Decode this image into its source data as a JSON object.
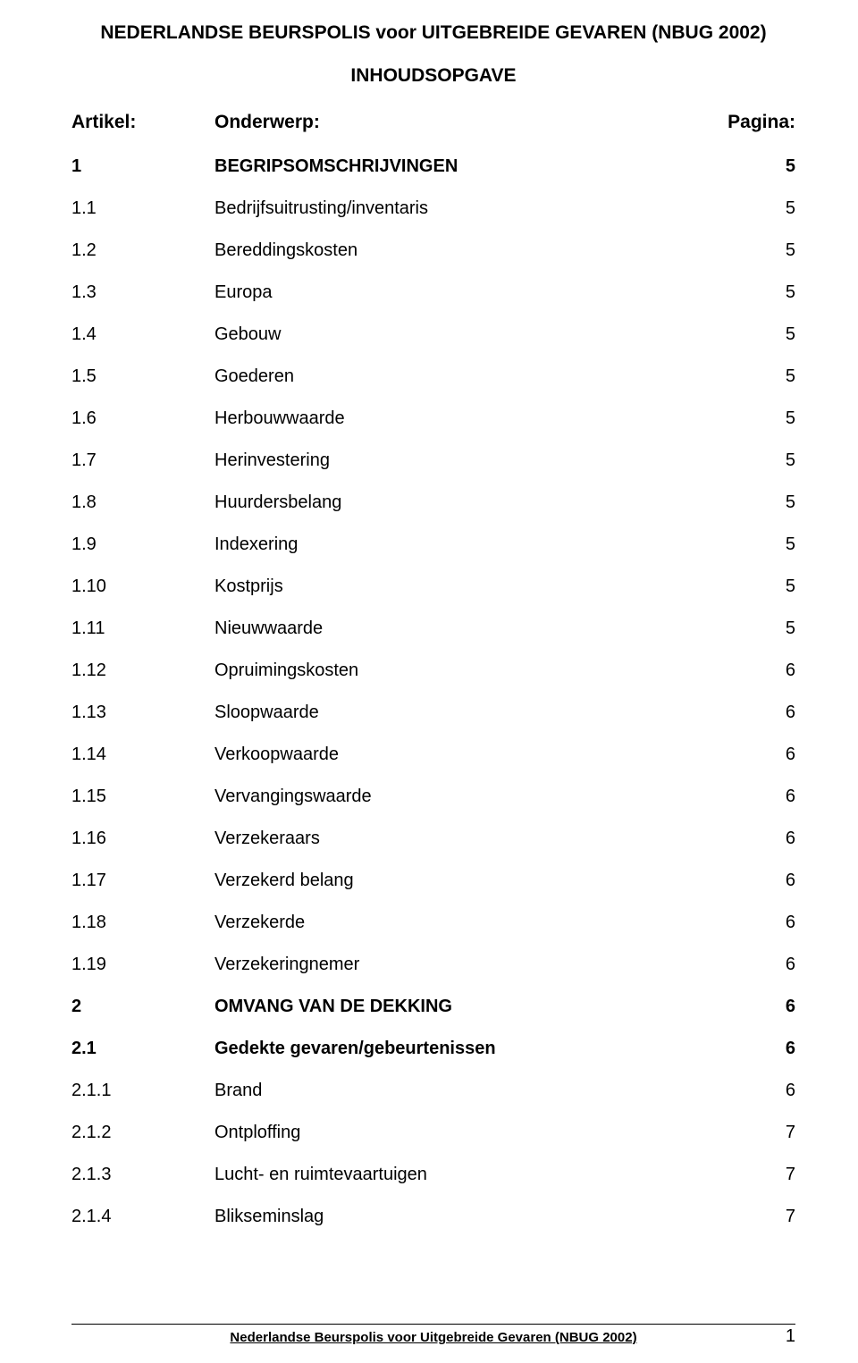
{
  "title": "NEDERLANDSE BEURSPOLIS voor UITGEBREIDE GEVAREN (NBUG 2002)",
  "subtitle": "INHOUDSOPGAVE",
  "headers": {
    "article": "Artikel:",
    "subject": "Onderwerp:",
    "page": "Pagina:"
  },
  "rows": [
    {
      "article": "1",
      "subject": "BEGRIPSOMSCHRIJVINGEN",
      "page": "5",
      "bold": true
    },
    {
      "article": "1.1",
      "subject": "Bedrijfsuitrusting/inventaris",
      "page": "5",
      "bold": false
    },
    {
      "article": "1.2",
      "subject": "Bereddingskosten",
      "page": "5",
      "bold": false
    },
    {
      "article": "1.3",
      "subject": "Europa",
      "page": "5",
      "bold": false
    },
    {
      "article": "1.4",
      "subject": "Gebouw",
      "page": "5",
      "bold": false
    },
    {
      "article": "1.5",
      "subject": "Goederen",
      "page": "5",
      "bold": false
    },
    {
      "article": "1.6",
      "subject": "Herbouwwaarde",
      "page": "5",
      "bold": false
    },
    {
      "article": "1.7",
      "subject": "Herinvestering",
      "page": "5",
      "bold": false
    },
    {
      "article": "1.8",
      "subject": "Huurdersbelang",
      "page": "5",
      "bold": false
    },
    {
      "article": "1.9",
      "subject": "Indexering",
      "page": "5",
      "bold": false
    },
    {
      "article": "1.10",
      "subject": "Kostprijs",
      "page": "5",
      "bold": false
    },
    {
      "article": "1.11",
      "subject": "Nieuwwaarde",
      "page": "5",
      "bold": false
    },
    {
      "article": "1.12",
      "subject": "Opruimingskosten",
      "page": "6",
      "bold": false
    },
    {
      "article": "1.13",
      "subject": "Sloopwaarde",
      "page": "6",
      "bold": false
    },
    {
      "article": "1.14",
      "subject": "Verkoopwaarde",
      "page": "6",
      "bold": false
    },
    {
      "article": "1.15",
      "subject": "Vervangingswaarde",
      "page": "6",
      "bold": false
    },
    {
      "article": "1.16",
      "subject": "Verzekeraars",
      "page": "6",
      "bold": false
    },
    {
      "article": "1.17",
      "subject": "Verzekerd belang",
      "page": "6",
      "bold": false
    },
    {
      "article": "1.18",
      "subject": "Verzekerde",
      "page": "6",
      "bold": false
    },
    {
      "article": "1.19",
      "subject": "Verzekeringnemer",
      "page": "6",
      "bold": false
    },
    {
      "article": "2",
      "subject": "OMVANG VAN DE DEKKING",
      "page": "6",
      "bold": true
    },
    {
      "article": "2.1",
      "subject": "Gedekte gevaren/gebeurtenissen",
      "page": "6",
      "bold": true
    },
    {
      "article": "2.1.1",
      "subject": "Brand",
      "page": "6",
      "bold": false
    },
    {
      "article": "2.1.2",
      "subject": "Ontploffing",
      "page": "7",
      "bold": false
    },
    {
      "article": "2.1.3",
      "subject": "Lucht- en ruimtevaartuigen",
      "page": "7",
      "bold": false
    },
    {
      "article": "2.1.4",
      "subject": "Blikseminslag",
      "page": "7",
      "bold": false
    }
  ],
  "footer": {
    "text": "Nederlandse Beurspolis voor Uitgebreide Gevaren (NBUG 2002)",
    "page_number": "1"
  }
}
